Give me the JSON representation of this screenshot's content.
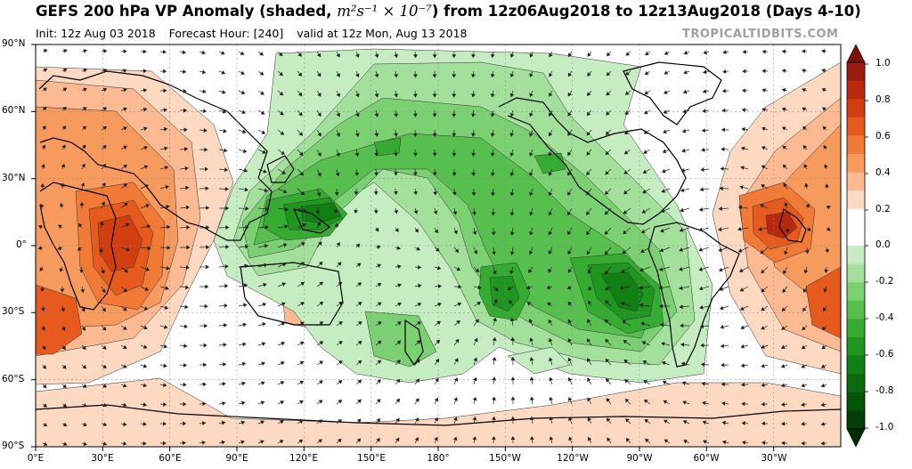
{
  "title": {
    "prefix": "GEFS 200 hPa VP Anomaly (shaded, ",
    "units": "m²s⁻¹ × 10⁻⁷",
    "suffix": ") from 12z06Aug2018 to 12z13Aug2018 (Days 4-10)"
  },
  "subtitle": {
    "init": "Init: 12z Aug 03 2018",
    "forecast": "Forecast Hour: [240]",
    "valid": "valid at 12z Mon, Aug 13 2018"
  },
  "credit": "TROPICALTIDBITS.COM",
  "lat_labels": [
    "90°N",
    "60°N",
    "30°N",
    "0°",
    "30°S",
    "60°S",
    "90°S"
  ],
  "lon_labels": [
    "0°E",
    "30°E",
    "60°E",
    "90°E",
    "120°E",
    "150°E",
    "180°",
    "150°W",
    "120°W",
    "90°W",
    "60°W",
    "30°W"
  ],
  "colorbar": {
    "labels": [
      "1.0",
      "0.8",
      "0.6",
      "0.4",
      "0.2",
      "0.0",
      "-0.2",
      "-0.4",
      "-0.6",
      "-0.8",
      "-1.0"
    ],
    "colors": [
      "#9b1c0e",
      "#b8290f",
      "#d23e10",
      "#e65a1e",
      "#f17a37",
      "#f79a5e",
      "#fbba91",
      "#fdd9c2",
      "#ffffff",
      "#ffffff",
      "#c6ecc2",
      "#a2e09b",
      "#7bd072",
      "#56bf4d",
      "#35ab31",
      "#1e9620",
      "#127f14",
      "#0a6a0c",
      "#04540a",
      "#033f07"
    ]
  },
  "colors": {
    "ocean_background": "#ffffff",
    "positive_fill": "#f17a37",
    "negative_fill": "#35ab31",
    "coastline": "#000000"
  }
}
